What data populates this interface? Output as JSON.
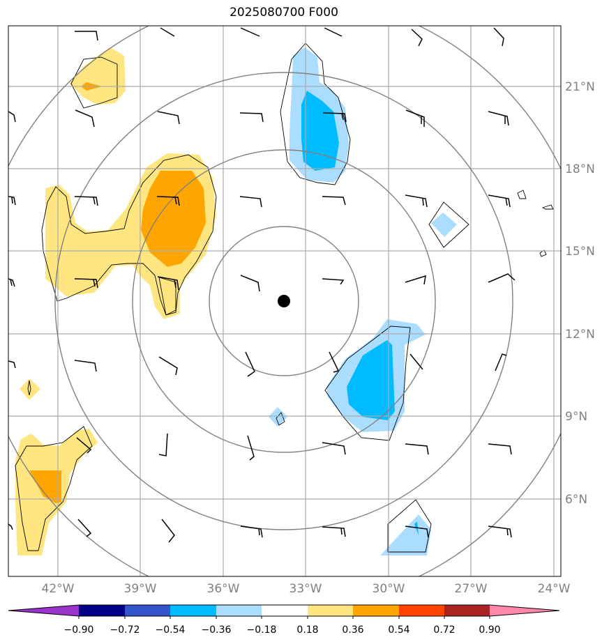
{
  "title": "2025080700 F000",
  "map": {
    "lon_range": [
      -44.0,
      -24.0
    ],
    "lat_range": [
      3.5,
      23.5
    ],
    "lon_ticks": [
      "42°W",
      "39°W",
      "36°W",
      "33°W",
      "30°W",
      "27°W",
      "24°W"
    ],
    "lat_ticks": [
      "6°N",
      "9°N",
      "12°N",
      "15°N",
      "18°N",
      "21°N"
    ],
    "gridline_color": "#aaaaaa",
    "range_ring_color": "#808080",
    "center_marker": {
      "lon": -33.75,
      "lat": 13.2
    }
  },
  "colorbar": {
    "levels": [
      "−0.90",
      "−0.72",
      "−0.54",
      "−0.36",
      "−0.18",
      "0.18",
      "0.36",
      "0.54",
      "0.72",
      "0.90"
    ],
    "colors": [
      "#9933cc",
      "#000088",
      "#3355cc",
      "#00bbff",
      "#aaddff",
      "#ffffff",
      "#ffe680",
      "#ffa500",
      "#ff4400",
      "#aa2222",
      "#ff88aa"
    ]
  },
  "fields": {
    "light_blue": "#aaddff",
    "blue": "#00bbff",
    "light_yellow": "#ffe680",
    "orange": "#ffa500"
  }
}
